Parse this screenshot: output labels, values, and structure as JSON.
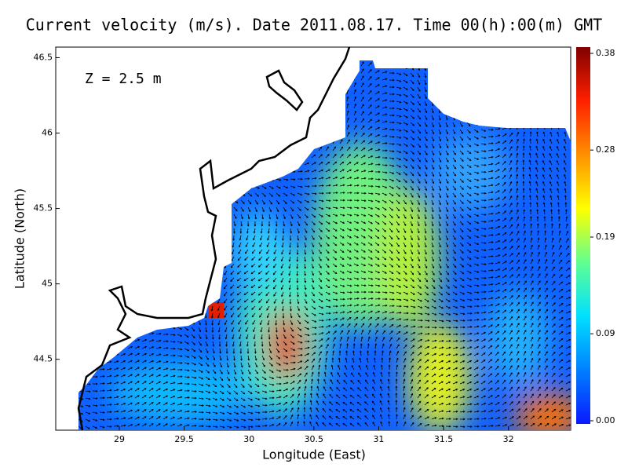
{
  "title": "Current velocity (m/s). Date 2011.08.17. Time 00(h):00(m) GMT",
  "annotation": "Z = 2.5 m",
  "x_axis": {
    "label": "Longitude (East)",
    "lim": [
      28.51,
      32.48
    ],
    "ticks": [
      29,
      29.5,
      30,
      30.5,
      31,
      31.5,
      32
    ]
  },
  "y_axis": {
    "label": "Latitude (North)",
    "lim": [
      44.03,
      46.57
    ],
    "ticks": [
      44.5,
      45,
      45.5,
      46,
      46.5
    ]
  },
  "colorbar": {
    "lim": [
      0,
      0.38
    ],
    "ticks": [
      {
        "value": 0,
        "label": "0.00"
      },
      0.09,
      0.19,
      0.28,
      0.38
    ],
    "colors": [
      "#0a1aff",
      "#0080ff",
      "#00e0ff",
      "#60ff90",
      "#ffff00",
      "#ff9000",
      "#ff2000",
      "#800000"
    ]
  }
}
